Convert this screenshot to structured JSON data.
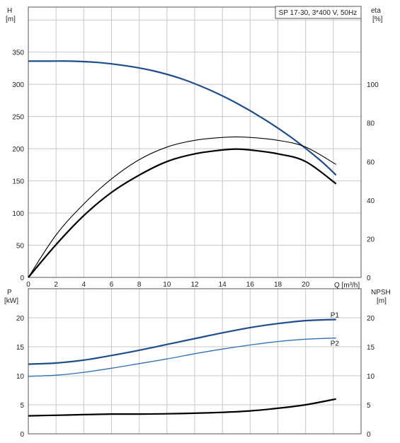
{
  "chart_data": [
    {
      "type": "line",
      "title": "SP 17-30, 3*400 V, 50Hz",
      "xlabel": "Q [m³/h]",
      "ylabel_left": "H",
      "ylabel_left_unit": "[m]",
      "ylabel_right": "eta",
      "ylabel_right_unit": "[%]",
      "xlim": [
        0,
        24
      ],
      "ylim_left": [
        0,
        420
      ],
      "ylim_right": [
        0,
        140
      ],
      "xticks": [
        "0",
        "2",
        "4",
        "6",
        "8",
        "10",
        "12",
        "14",
        "16",
        "18",
        "20"
      ],
      "yticks_left": [
        "0",
        "50",
        "100",
        "150",
        "200",
        "250",
        "300",
        "350"
      ],
      "yticks_right": [
        "0",
        "20",
        "40",
        "60",
        "80",
        "100"
      ],
      "grid": true,
      "colors": {
        "head": "#1f4e8c",
        "eta": "#000000",
        "grid": "#c8c8c8"
      },
      "series": [
        {
          "axis": "left",
          "x": [
            0,
            1.5,
            3,
            5,
            7,
            9,
            11,
            13,
            15,
            17,
            19,
            21,
            22.2
          ],
          "values": [
            336,
            336,
            336,
            334,
            329,
            321,
            309,
            292,
            271,
            246,
            217,
            183,
            159
          ]
        },
        {
          "axis": "right",
          "x": [
            0,
            2,
            4,
            6,
            8,
            10,
            12,
            14,
            15,
            16,
            18,
            20,
            22.2
          ],
          "values": [
            0,
            17,
            32,
            44,
            53,
            60,
            64,
            66,
            66.5,
            66,
            64,
            60,
            48.5
          ]
        },
        {
          "axis": "right",
          "x": [
            0,
            2,
            4,
            6,
            8,
            10,
            12,
            14,
            15,
            16,
            18,
            20,
            22.2
          ],
          "values": [
            0,
            22,
            38,
            51,
            61,
            67.5,
            71,
            72.5,
            72.8,
            72.5,
            71,
            67.5,
            58.5
          ]
        }
      ]
    },
    {
      "type": "line",
      "ylabel_left": "P",
      "ylabel_left_unit": "[kW]",
      "ylabel_right": "NPSH",
      "ylabel_right_unit": "[m]",
      "xlim": [
        0,
        24
      ],
      "ylim_left": [
        0,
        25
      ],
      "ylim_right": [
        0,
        25
      ],
      "yticks_left": [
        "0",
        "5",
        "10",
        "15",
        "20"
      ],
      "yticks_right": [
        "0",
        "5",
        "10",
        "15",
        "20"
      ],
      "grid": true,
      "colors": {
        "p1": "#1f4e8c",
        "p2": "#2e6fb5",
        "npsh": "#000000"
      },
      "series": [
        {
          "name": "P1",
          "axis": "left",
          "x": [
            0,
            2,
            4,
            6,
            8,
            10,
            12,
            14,
            16,
            18,
            20,
            22.2
          ],
          "values": [
            12,
            12.2,
            12.7,
            13.5,
            14.4,
            15.4,
            16.4,
            17.4,
            18.3,
            19.0,
            19.5,
            19.7
          ]
        },
        {
          "name": "P2",
          "axis": "left",
          "x": [
            0,
            2,
            4,
            6,
            8,
            10,
            12,
            14,
            16,
            18,
            20,
            22.2
          ],
          "values": [
            9.9,
            10.1,
            10.6,
            11.3,
            12.1,
            12.9,
            13.8,
            14.6,
            15.3,
            15.9,
            16.3,
            16.5
          ]
        },
        {
          "axis": "right",
          "x": [
            0,
            2,
            4,
            6,
            8,
            10,
            12,
            14,
            16,
            18,
            20,
            22.2
          ],
          "values": [
            3.1,
            3.2,
            3.3,
            3.4,
            3.4,
            3.45,
            3.55,
            3.7,
            3.95,
            4.4,
            5.0,
            6.0
          ]
        }
      ]
    }
  ]
}
